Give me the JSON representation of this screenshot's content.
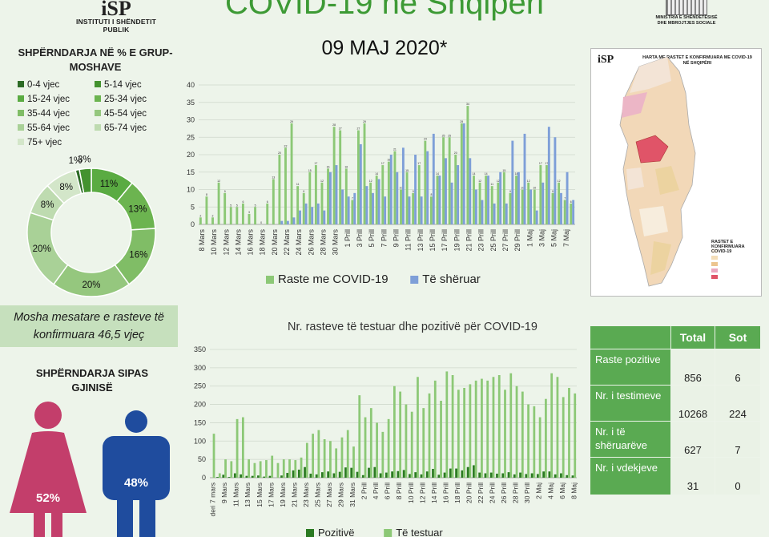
{
  "header": {
    "institute_mark": "iSP",
    "institute_name": "INSTITUTI I SHËNDETIT PUBLIK",
    "title": "COVID-19 në Shqipëri",
    "date": "09 MAJ 2020*",
    "ministry_name": "MINISTRIA E SHËNDETËSISË DHE MBROJTJES SOCIALE"
  },
  "age_section": {
    "title": "SHPËRNDARJA NË % E GRUP-MOSHAVE",
    "note": "Mosha mesatare e rasteve të konfirmuara 46,5 vjeç"
  },
  "gender_section": {
    "title": "SHPËRNDARJA SIPAS GJINISË",
    "female_pct": "52%",
    "male_pct": "48%",
    "female_color": "#c33e6b",
    "male_color": "#1f4c9e"
  },
  "map": {
    "logo": "iSP",
    "title": "HARTA ME RASTET E KONFIRMUARA ME COVID-19 NË SHQIPËRI",
    "legend_title": "RASTET E KONFIRMUARA COVID-19"
  },
  "summary_table": {
    "headers": [
      "",
      "Total",
      "Sot"
    ],
    "rows": [
      {
        "label": "Raste pozitive",
        "total": "856",
        "today": "6"
      },
      {
        "label": "Nr. i testimeve",
        "total": "10268",
        "today": "224"
      },
      {
        "label": "Nr. i të shëruarëve",
        "total": "627",
        "today": "7"
      },
      {
        "label": "Nr. i vdekjeve",
        "total": "31",
        "today": "0"
      }
    ]
  },
  "chart_data": [
    {
      "type": "pie",
      "title": "SHPËRNDARJA NË % E GRUP-MOSHAVE",
      "categories": [
        "0-4 vjec",
        "5-14 vjec",
        "15-24 vjec",
        "25-34 vjec",
        "35-44 vjec",
        "45-54 vjec",
        "55-64 vjec",
        "65-74 vjec",
        "75+ vjec"
      ],
      "values": [
        1,
        3,
        11,
        13,
        16,
        20,
        20,
        8,
        8
      ],
      "labels": [
        "1%",
        "3%",
        "11%",
        "13%",
        "16%",
        "20%",
        "20%",
        "8%",
        "8%"
      ],
      "colors": [
        "#2d6b26",
        "#43922f",
        "#5aab42",
        "#6cb450",
        "#80bd66",
        "#95c77e",
        "#a9d197",
        "#bedbb0",
        "#d3e6c9"
      ]
    },
    {
      "type": "bar",
      "title": "",
      "categories": [
        "8 Mars",
        "9 Mars",
        "10 Mars",
        "11 Mars",
        "12 Mars",
        "13 Mars",
        "14 Mars",
        "15 Mars",
        "16 Mars",
        "17 Mars",
        "18 Mars",
        "19 Mars",
        "20 Mars",
        "21 Mars",
        "22 Mars",
        "23 Mars",
        "24 Mars",
        "25 Mars",
        "26 Mars",
        "27 Mars",
        "28 Mars",
        "29 Mars",
        "30 Mars",
        "31 Mars",
        "1 Prill",
        "2 Prill",
        "3 Prill",
        "4 Prill",
        "5 Prill",
        "6 Prill",
        "7 Prill",
        "8 Prill",
        "9 Prill",
        "10 Prill",
        "11 Prill",
        "12 Prill",
        "13 Prill",
        "14 Prill",
        "15 Prill",
        "16 Prill",
        "17 Prill",
        "18 Prill",
        "19 Prill",
        "20 Prill",
        "21 Prill",
        "22 Prill",
        "23 Prill",
        "24 Prill",
        "25 Prill",
        "26 Prill",
        "27 Prill",
        "28 Prill",
        "29 Prill",
        "30 Prill",
        "1 Maj",
        "2 Maj",
        "3 Maj",
        "4 Maj",
        "5 Maj",
        "6 Maj",
        "7 Maj",
        "8 Maj"
      ],
      "tick_labels": [
        "8 Mars",
        "10 Mars",
        "12 Mars",
        "14 Mars",
        "16 Mars",
        "18 Mars",
        "20 Mars",
        "22 Mars",
        "24 Mars",
        "26 Mars",
        "28 Mars",
        "30 Mars",
        "1 Prill",
        "3 Prill",
        "5 Prill",
        "7 Prill",
        "9 Prill",
        "11 Prill",
        "13 Prill",
        "15 Prill",
        "17 Prill",
        "19 Prill",
        "21 Prill",
        "23 Prill",
        "25 Prill",
        "27 Prill",
        "29 Prill",
        "1 Maj",
        "3 Maj",
        "5 Maj",
        "7 Maj"
      ],
      "series": [
        {
          "name": "Raste me COVID-19",
          "color": "#8cc876",
          "values": [
            2,
            8,
            2,
            12,
            9,
            5,
            5,
            6,
            3,
            5,
            0,
            6,
            13,
            20,
            22,
            29,
            11,
            9,
            15,
            17,
            12,
            16,
            28,
            27,
            16,
            7,
            27,
            29,
            12,
            14,
            17,
            18,
            21,
            10,
            15,
            9,
            17,
            24,
            8,
            14,
            25,
            25,
            20,
            29,
            34,
            14,
            12,
            14,
            11,
            12,
            15,
            9,
            14,
            10,
            12,
            10,
            17,
            17,
            9,
            12,
            7,
            6
          ],
          "labels": [
            2,
            8,
            2,
            12,
            9,
            5,
            5,
            6,
            3,
            5,
            0,
            6,
            13,
            20,
            22,
            29,
            11,
            9,
            15,
            17,
            12,
            16,
            28,
            27,
            16,
            7,
            27,
            29,
            12,
            14,
            17,
            18,
            21,
            10,
            15,
            9,
            17,
            24,
            8,
            14,
            25,
            25,
            20,
            29,
            34,
            14,
            12,
            14,
            11,
            12,
            15,
            9,
            14,
            10,
            12,
            10,
            17,
            17,
            9,
            12,
            7,
            6
          ]
        },
        {
          "name": "Të shëruar",
          "color": "#7e9fd8",
          "values": [
            0,
            0,
            0,
            0,
            0,
            0,
            0,
            0,
            0,
            0,
            0,
            0,
            0,
            1,
            1,
            2,
            4,
            6,
            5,
            6,
            4,
            15,
            17,
            10,
            8,
            9,
            23,
            11,
            9,
            13,
            8,
            20,
            15,
            22,
            8,
            20,
            8,
            21,
            26,
            14,
            19,
            12,
            17,
            29,
            19,
            10,
            7,
            14,
            6,
            15,
            6,
            24,
            15,
            26,
            10,
            4,
            12,
            28,
            25,
            9,
            15,
            7
          ]
        }
      ],
      "ylim": [
        0,
        40
      ],
      "yticks": [
        0,
        5,
        10,
        15,
        20,
        25,
        30,
        35,
        40
      ],
      "legend_position": "bottom"
    },
    {
      "type": "bar",
      "title": "Nr. rasteve të testuar dhe pozitivë për COVID-19",
      "categories": [
        "deri 7 mars",
        "8 Mars",
        "9 Mars",
        "10 Mars",
        "11 Mars",
        "12 Mars",
        "13 Mars",
        "14 Mars",
        "15 Mars",
        "16 Mars",
        "17 Mars",
        "18 Mars",
        "19 Mars",
        "20 Mars",
        "21 Mars",
        "22 Mars",
        "23 Mars",
        "24 Mars",
        "25 Mars",
        "26 Mars",
        "27 Mars",
        "28 Mars",
        "29 Mars",
        "30 Mars",
        "31 Mars",
        "1 Prill",
        "2 Prill",
        "3 Prill",
        "4 Prill",
        "5 Prill",
        "6 Prill",
        "7 Prill",
        "8 Prill",
        "9 Prill",
        "10 Prill",
        "11 Prill",
        "12 Prill",
        "13 Prill",
        "14 Prill",
        "15 Prill",
        "16 Prill",
        "17 Prill",
        "18 Prill",
        "19 Prill",
        "20 Prill",
        "21 Prill",
        "22 Prill",
        "23 Prill",
        "24 Prill",
        "25 Prill",
        "26 Prill",
        "27 Prill",
        "28 Prill",
        "29 Prill",
        "30 Prill",
        "1 Maj",
        "2 Maj",
        "3 Maj",
        "4 Maj",
        "5 Maj",
        "6 Maj",
        "7 Maj",
        "8 Maj"
      ],
      "tick_labels": [
        "deri 7 mars",
        "9 Mars",
        "11 Mars",
        "13 Mars",
        "15 Mars",
        "17 Mars",
        "19 Mars",
        "21 Mars",
        "23 Mars",
        "25 Mars",
        "27 Mars",
        "29 Mars",
        "31 Mars",
        "2 Prill",
        "4 Prill",
        "6 Prill",
        "8 Prill",
        "10 Prill",
        "12 Prill",
        "14 Prill",
        "16 Prill",
        "18 Prill",
        "20 Prill",
        "22 Prill",
        "24 Prill",
        "26 Prill",
        "28 Prill",
        "30 Prill",
        "2 Maj",
        "4 Maj",
        "6 Maj",
        "8 Maj"
      ],
      "series": [
        {
          "name": "Pozitivë",
          "color": "#2b7a22",
          "values": [
            0,
            2,
            8,
            2,
            12,
            9,
            5,
            5,
            6,
            3,
            5,
            0,
            6,
            13,
            20,
            22,
            29,
            11,
            9,
            15,
            17,
            12,
            16,
            28,
            27,
            16,
            7,
            27,
            29,
            12,
            14,
            17,
            18,
            21,
            10,
            15,
            9,
            17,
            24,
            8,
            14,
            25,
            25,
            20,
            29,
            34,
            14,
            12,
            14,
            11,
            12,
            15,
            9,
            14,
            10,
            12,
            10,
            17,
            17,
            9,
            12,
            7,
            6
          ]
        },
        {
          "name": "Të testuar",
          "color": "#8cc876",
          "values": [
            120,
            12,
            50,
            45,
            160,
            165,
            50,
            40,
            45,
            48,
            60,
            40,
            50,
            50,
            48,
            55,
            95,
            120,
            130,
            105,
            100,
            80,
            110,
            130,
            85,
            225,
            165,
            190,
            150,
            125,
            160,
            250,
            235,
            200,
            180,
            275,
            190,
            230,
            265,
            210,
            290,
            280,
            240,
            245,
            255,
            265,
            270,
            265,
            275,
            280,
            240,
            285,
            250,
            235,
            200,
            195,
            165,
            215,
            285,
            275,
            220,
            245,
            230
          ]
        }
      ],
      "ylim": [
        0,
        350
      ],
      "yticks": [
        0,
        50,
        100,
        150,
        200,
        250,
        300,
        350
      ],
      "legend_position": "bottom"
    }
  ]
}
